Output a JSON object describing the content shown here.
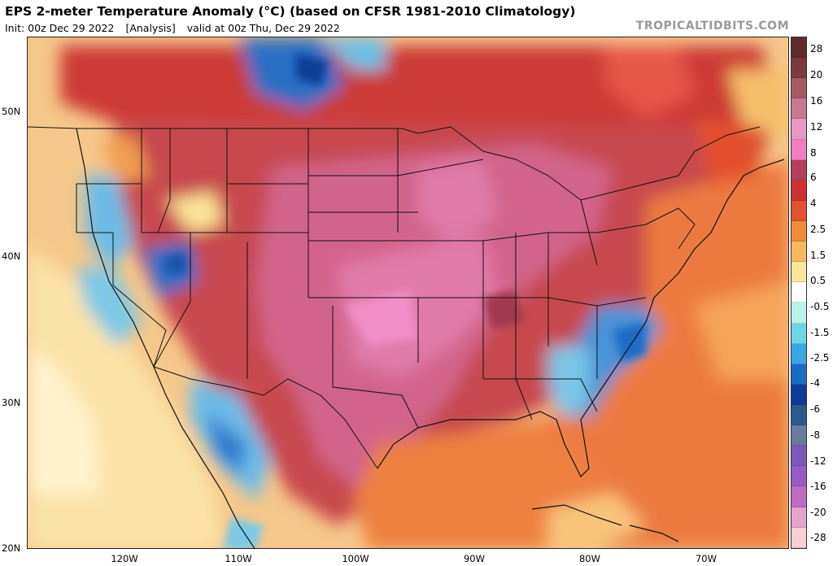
{
  "header": {
    "title": "EPS 2-meter Temperature Anomaly (°C) (based on CFSR 1981-2010 Climatology)",
    "init": "Init: 00z Dec 29 2022",
    "analysis": "[Analysis]",
    "valid": "valid at 00z Thu, Dec 29 2022",
    "brand": "TROPICALTIDBITS.COM"
  },
  "axes": {
    "lat_labels": [
      "50N",
      "40N",
      "30N",
      "20N"
    ],
    "lon_labels": [
      "120W",
      "110W",
      "100W",
      "90W",
      "80W",
      "70W"
    ]
  },
  "colorbar": {
    "labels": [
      "28",
      "20",
      "16",
      "12",
      "8",
      "6",
      "4",
      "2.5",
      "1.5",
      "0.5",
      "-0.5",
      "-1.5",
      "-2.5",
      "-4",
      "-6",
      "-8",
      "-12",
      "-16",
      "-20",
      "-28"
    ],
    "colors": [
      "#5e2a2a",
      "#7e3a3a",
      "#a55a62",
      "#c97892",
      "#e796c6",
      "#f07ec0",
      "#b4405a",
      "#cf3030",
      "#e2522e",
      "#f08a3c",
      "#f8b862",
      "#fde49a",
      "#ffffff",
      "#b8f2ec",
      "#6cd6e6",
      "#3aa6e2",
      "#1a6cc8",
      "#0c3c98",
      "#2c5a8a",
      "#6a7aa0",
      "#7a5ab8",
      "#9a5ac6",
      "#c06ac2",
      "#e6a2cc",
      "#f8d0d0"
    ]
  },
  "map": {
    "ocean_color": "#f6c78a",
    "land_warm_color": "#c8494e",
    "land_hot_color": "#d86f9a",
    "cold_color": "#3c8ad8",
    "border_color": "#111111"
  }
}
